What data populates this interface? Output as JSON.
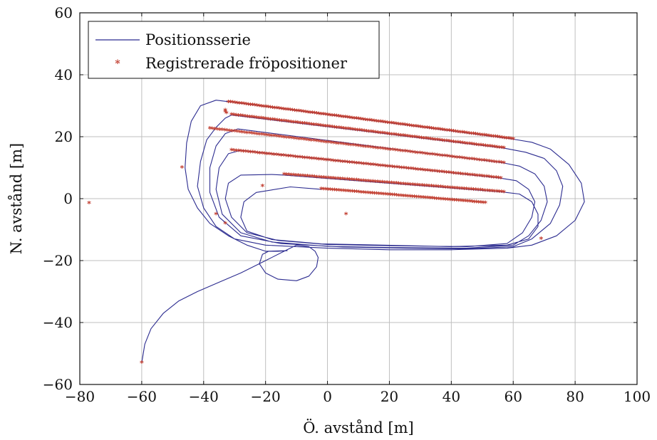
{
  "chart_data": {
    "type": "scatter",
    "xlabel": "Ö. avstånd [m]",
    "ylabel": "N. avstånd [m]",
    "xlim": [
      -80,
      100
    ],
    "ylim": [
      -60,
      60
    ],
    "x_ticks": [
      -80,
      -60,
      -40,
      -20,
      0,
      20,
      40,
      60,
      80,
      100
    ],
    "y_ticks": [
      -60,
      -40,
      -20,
      0,
      20,
      40,
      60
    ],
    "x_tick_labels": [
      "−80",
      "−60",
      "−40",
      "−20",
      "0",
      "20",
      "40",
      "60",
      "80",
      "100"
    ],
    "y_tick_labels": [
      "−60",
      "−40",
      "−20",
      "0",
      "20",
      "40",
      "60"
    ],
    "grid": true,
    "legend_position": "top-left",
    "colors": {
      "line": "#2b2b8f",
      "marker": "#c0392b"
    },
    "series": [
      {
        "name": "Positionsserie",
        "kind": "line",
        "points": [
          [
            -60,
            -53
          ],
          [
            -59,
            -47
          ],
          [
            -57,
            -42
          ],
          [
            -53,
            -37
          ],
          [
            -48,
            -33
          ],
          [
            -42,
            -30
          ],
          [
            -35,
            -27
          ],
          [
            -28,
            -24
          ],
          [
            -20,
            -20
          ],
          [
            -14,
            -17
          ],
          [
            -10,
            -15
          ],
          [
            -6,
            -15.5
          ],
          [
            -4,
            -17
          ],
          [
            -3,
            -19
          ],
          [
            -3.5,
            -22
          ],
          [
            -6,
            -25
          ],
          [
            -10,
            -26.5
          ],
          [
            -16,
            -26
          ],
          [
            -20,
            -24
          ],
          [
            -22,
            -21
          ],
          [
            -21,
            -18
          ],
          [
            -19,
            -17
          ],
          [
            -16,
            -17
          ],
          [
            -13,
            -16.8
          ],
          [
            -20,
            -17
          ],
          [
            -26,
            -15
          ],
          [
            -32,
            -12
          ],
          [
            -38,
            -8
          ],
          [
            -42,
            -3
          ],
          [
            -45,
            3
          ],
          [
            -46,
            10
          ],
          [
            -45.5,
            18
          ],
          [
            -44,
            25
          ],
          [
            -41,
            30
          ],
          [
            -36,
            31.8
          ],
          [
            -31,
            31.2
          ],
          [
            60,
            19.2
          ],
          [
            66,
            18.2
          ],
          [
            72,
            16
          ],
          [
            78,
            11
          ],
          [
            82,
            5
          ],
          [
            83,
            -1
          ],
          [
            80,
            -7
          ],
          [
            74,
            -12
          ],
          [
            66,
            -15
          ],
          [
            58,
            -16
          ],
          [
            40,
            -16.5
          ],
          [
            20,
            -16.5
          ],
          [
            0,
            -16
          ],
          [
            -20,
            -15
          ],
          [
            -30,
            -13
          ],
          [
            -36,
            -9
          ],
          [
            -40,
            -3
          ],
          [
            -42,
            4
          ],
          [
            -41,
            12
          ],
          [
            -39,
            19
          ],
          [
            -36,
            23
          ],
          [
            -33,
            26
          ],
          [
            -31,
            27
          ],
          [
            57,
            16.3
          ],
          [
            64,
            15
          ],
          [
            70,
            13
          ],
          [
            74,
            9
          ],
          [
            76,
            4
          ],
          [
            75,
            -2
          ],
          [
            72,
            -8
          ],
          [
            66,
            -13
          ],
          [
            60,
            -15.5
          ],
          [
            45,
            -16.2
          ],
          [
            25,
            -16
          ],
          [
            5,
            -15.6
          ],
          [
            -15,
            -14.5
          ],
          [
            -28,
            -12
          ],
          [
            -35,
            -6
          ],
          [
            -38,
            2
          ],
          [
            -38,
            10
          ],
          [
            -36,
            17
          ],
          [
            -33,
            21
          ],
          [
            -29,
            22.5
          ],
          [
            57,
            11.5
          ],
          [
            62,
            10.5
          ],
          [
            67,
            8
          ],
          [
            70,
            4
          ],
          [
            71,
            -1
          ],
          [
            69,
            -7
          ],
          [
            65,
            -12
          ],
          [
            60,
            -15
          ],
          [
            45,
            -16
          ],
          [
            20,
            -15.8
          ],
          [
            0,
            -15.4
          ],
          [
            -18,
            -14
          ],
          [
            -28,
            -11
          ],
          [
            -34,
            -5
          ],
          [
            -36,
            3
          ],
          [
            -35,
            10
          ],
          [
            -32,
            14.5
          ],
          [
            -28,
            15.6
          ],
          [
            56,
            6.6
          ],
          [
            61,
            5.8
          ],
          [
            65,
            3
          ],
          [
            67,
            -1
          ],
          [
            66,
            -6
          ],
          [
            63,
            -11
          ],
          [
            58,
            -14.5
          ],
          [
            45,
            -15.5
          ],
          [
            20,
            -15.2
          ],
          [
            0,
            -14.8
          ],
          [
            -16,
            -13.5
          ],
          [
            -26,
            -11
          ],
          [
            -31,
            -6
          ],
          [
            -33,
            0
          ],
          [
            -32,
            5
          ],
          [
            -28,
            7.6
          ],
          [
            -18,
            7.8
          ],
          [
            -14,
            7.6
          ],
          [
            57,
            2.1
          ],
          [
            62,
            1.5
          ],
          [
            66,
            -1
          ],
          [
            68,
            -5
          ],
          [
            68,
            -9
          ],
          [
            65,
            -13
          ],
          [
            58,
            -15
          ],
          [
            40,
            -15.5
          ],
          [
            18,
            -15
          ],
          [
            -2,
            -14.6
          ],
          [
            -18,
            -13.2
          ],
          [
            -26,
            -10.5
          ],
          [
            -28,
            -6
          ],
          [
            -27,
            -1
          ],
          [
            -23,
            2
          ],
          [
            -12,
            3.8
          ],
          [
            -2,
            3
          ]
        ]
      },
      {
        "name": "Registrerade fröpositioner",
        "kind": "markers",
        "segments": [
          {
            "from": [
              -32,
              31.2
            ],
            "to": [
              60,
              19.2
            ],
            "n": 130
          },
          {
            "from": [
              -31,
              27.1
            ],
            "to": [
              57,
              16.3
            ],
            "n": 120
          },
          {
            "from": [
              -38,
              22.6
            ],
            "to": [
              57,
              11.5
            ],
            "n": 120
          },
          {
            "from": [
              -31,
              15.6
            ],
            "to": [
              56,
              6.6
            ],
            "n": 115
          },
          {
            "from": [
              -14,
              7.8
            ],
            "to": [
              57,
              2.1
            ],
            "n": 95
          },
          {
            "from": [
              -2,
              3.1
            ],
            "to": [
              51,
              -1.4
            ],
            "n": 75
          }
        ],
        "points": [
          [
            -77,
            -1.5
          ],
          [
            -60,
            -53
          ],
          [
            -47,
            10
          ],
          [
            -36,
            -5
          ],
          [
            -33,
            -8
          ],
          [
            -21,
            4
          ],
          [
            6,
            -5
          ],
          [
            69,
            -13
          ],
          [
            -33,
            28.5
          ],
          [
            -33,
            28
          ],
          [
            -32.6,
            27.6
          ]
        ]
      }
    ]
  }
}
